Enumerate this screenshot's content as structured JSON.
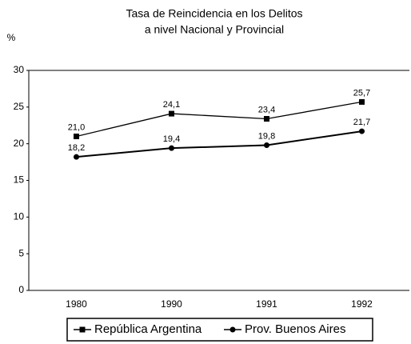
{
  "chart_data": {
    "type": "line",
    "title": [
      "Tasa de Reincidencia en los Delitos",
      "a nivel Nacional y Provincial"
    ],
    "y_label": "%",
    "categories": [
      "1980",
      "1990",
      "1991",
      "1992"
    ],
    "series": [
      {
        "name": "República Argentina",
        "color": "#000000",
        "marker": "square",
        "values": [
          21.0,
          24.1,
          23.4,
          25.7
        ],
        "value_labels": [
          "21,0",
          "24,1",
          "23,4",
          "25,7"
        ]
      },
      {
        "name": "Prov. Buenos Aires",
        "color": "#000000",
        "marker": "circle",
        "values": [
          18.2,
          19.4,
          19.8,
          21.7
        ],
        "value_labels": [
          "18,2",
          "19,4",
          "19,8",
          "21,7"
        ]
      }
    ],
    "ylim": [
      0,
      30
    ],
    "yticks": [
      0,
      5,
      10,
      15,
      20,
      25,
      30
    ],
    "grid": false,
    "legend": "bottom"
  }
}
